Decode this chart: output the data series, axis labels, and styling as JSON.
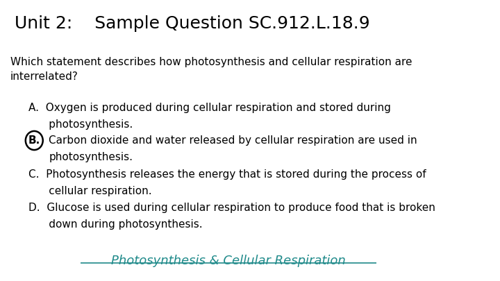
{
  "title": "Unit 2:    Sample Question SC.912.L.18.9",
  "question": "Which statement describes how photosynthesis and cellular respiration are\ninterrelated?",
  "answer_A_line1": "A.  Oxygen is produced during cellular respiration and stored during",
  "answer_A_line2": "      photosynthesis.",
  "answer_B_line1": "Carbon dioxide and water released by cellular respiration are used in",
  "answer_B_line2": "photosynthesis.",
  "answer_C_line1": "C.  Photosynthesis releases the energy that is stored during the process of",
  "answer_C_line2": "      cellular respiration.",
  "answer_D_line1": "D.  Glucose is used during cellular respiration to produce food that is broken",
  "answer_D_line2": "      down during photosynthesis.",
  "footer": "Photosynthesis & Cellular Respiration",
  "bg_color": "#ffffff",
  "title_color": "#000000",
  "text_color": "#000000",
  "footer_color": "#1F8A8A",
  "title_fontsize": 18,
  "question_fontsize": 11,
  "answer_fontsize": 11,
  "footer_fontsize": 13
}
